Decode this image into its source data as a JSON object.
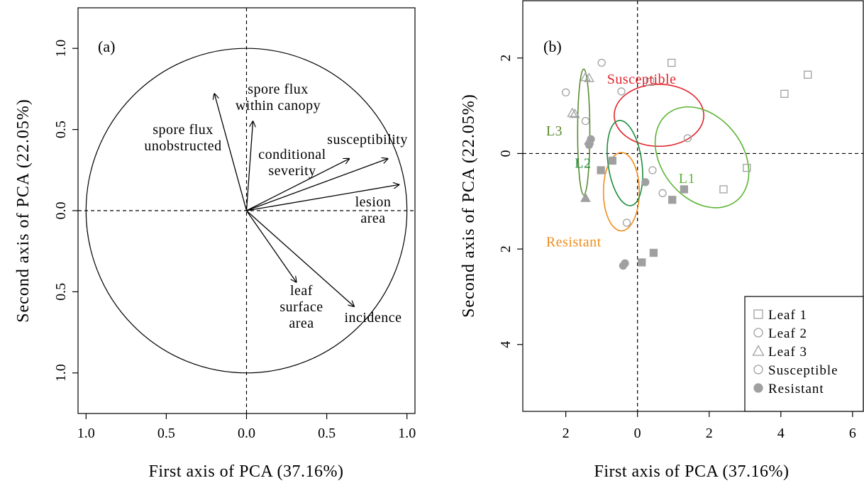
{
  "figure": {
    "xlabel": "First axis of PCA (37.16%)",
    "ylabel": "Second axis of PCA (22.05%)"
  },
  "colors": {
    "black": "#000000",
    "gray": "#a0a0a0",
    "susceptible": "#e0242c",
    "resistant": "#f08c1e",
    "L1": "#5ab432",
    "L2": "#1e8c3c",
    "L3": "#5a8c32"
  },
  "chart_data": [
    {
      "panel_label": "(a)",
      "type": "biplot-arrows",
      "xlabel": "First axis of PCA (37.16%)",
      "ylabel": "Second axis of PCA (22.05%)",
      "xlim": [
        -1.05,
        1.05
      ],
      "ylim": [
        -1.25,
        1.25
      ],
      "x_ticks": [
        -1.0,
        -0.5,
        0.0,
        0.5,
        1.0
      ],
      "x_tick_labels": [
        "1.0",
        "0.5",
        "0.0",
        "0.5",
        "1.0"
      ],
      "y_ticks": [
        -1.0,
        -0.5,
        0.0,
        0.5,
        1.0
      ],
      "y_tick_labels": [
        "1.0",
        "0.5",
        "0.0",
        "0.5",
        "1.0"
      ],
      "unit_circle": true,
      "reference_lines": {
        "x": 0,
        "y": 0,
        "style": "dashed"
      },
      "arrows": [
        {
          "label": "spore flux unobstructed",
          "lines": [
            "spore flux",
            "unobstructed"
          ],
          "x": -0.2,
          "y": 0.72
        },
        {
          "label": "spore flux within canopy",
          "lines": [
            "spore flux",
            "within canopy"
          ],
          "x": 0.04,
          "y": 0.55
        },
        {
          "label": "conditional severity",
          "lines": [
            "conditional",
            "severity"
          ],
          "x": 0.64,
          "y": 0.32
        },
        {
          "label": "susceptibility",
          "lines": [
            "susceptibility"
          ],
          "x": 0.88,
          "y": 0.32
        },
        {
          "label": "lesion area",
          "lines": [
            "lesion",
            "area"
          ],
          "x": 0.95,
          "y": 0.16
        },
        {
          "label": "leaf surface area",
          "lines": [
            "leaf",
            "surface",
            "area"
          ],
          "x": 0.31,
          "y": -0.44
        },
        {
          "label": "incidence",
          "lines": [
            "incidence"
          ],
          "x": 0.67,
          "y": -0.59
        }
      ]
    },
    {
      "panel_label": "(b)",
      "type": "scatter",
      "xlabel": "First axis of PCA (37.16%)",
      "ylabel": "Second axis of PCA (22.05%)",
      "xlim": [
        -3.2,
        6.3
      ],
      "ylim": [
        -5.4,
        3.2
      ],
      "x_ticks": [
        -2,
        0,
        2,
        4,
        6
      ],
      "x_tick_labels": [
        "2",
        "0",
        "2",
        "4",
        "6"
      ],
      "y_ticks": [
        -4,
        -2,
        0,
        2
      ],
      "y_tick_labels": [
        "4",
        "2",
        "0",
        "2"
      ],
      "reference_lines": {
        "x": 0,
        "y": 0,
        "style": "dashed"
      },
      "points": [
        {
          "x": 0.35,
          "y": 1.5,
          "shape": "square",
          "filled": false
        },
        {
          "x": 0.95,
          "y": 1.9,
          "shape": "square",
          "filled": false
        },
        {
          "x": 4.1,
          "y": 1.25,
          "shape": "square",
          "filled": false
        },
        {
          "x": 4.75,
          "y": 1.65,
          "shape": "square",
          "filled": false
        },
        {
          "x": 3.05,
          "y": -0.3,
          "shape": "square",
          "filled": false
        },
        {
          "x": 2.4,
          "y": -0.75,
          "shape": "square",
          "filled": false
        },
        {
          "x": -1.02,
          "y": -0.35,
          "shape": "square",
          "filled": true
        },
        {
          "x": -0.7,
          "y": -0.15,
          "shape": "square",
          "filled": true
        },
        {
          "x": 0.97,
          "y": -0.97,
          "shape": "square",
          "filled": true
        },
        {
          "x": 1.3,
          "y": -0.75,
          "shape": "square",
          "filled": true
        },
        {
          "x": 0.12,
          "y": -2.28,
          "shape": "square",
          "filled": true
        },
        {
          "x": 0.45,
          "y": -2.08,
          "shape": "square",
          "filled": true
        },
        {
          "x": -2.0,
          "y": 1.28,
          "shape": "circle",
          "filled": false
        },
        {
          "x": -1.0,
          "y": 1.9,
          "shape": "circle",
          "filled": false
        },
        {
          "x": -0.45,
          "y": 1.3,
          "shape": "circle",
          "filled": false
        },
        {
          "x": -1.45,
          "y": 0.68,
          "shape": "circle",
          "filled": false
        },
        {
          "x": 1.4,
          "y": 0.32,
          "shape": "circle",
          "filled": false
        },
        {
          "x": 0.42,
          "y": -0.35,
          "shape": "circle",
          "filled": false
        },
        {
          "x": 0.7,
          "y": -0.83,
          "shape": "circle",
          "filled": false
        },
        {
          "x": -0.3,
          "y": -1.45,
          "shape": "circle",
          "filled": false
        },
        {
          "x": -1.3,
          "y": 0.3,
          "shape": "circle",
          "filled": true
        },
        {
          "x": -1.35,
          "y": 0.18,
          "shape": "circle",
          "filled": true
        },
        {
          "x": 0.22,
          "y": -0.6,
          "shape": "circle",
          "filled": true
        },
        {
          "x": -0.35,
          "y": -2.3,
          "shape": "circle",
          "filled": true
        },
        {
          "x": -0.4,
          "y": -2.35,
          "shape": "circle",
          "filled": true
        },
        {
          "x": -1.45,
          "y": 1.6,
          "shape": "triangle",
          "filled": false
        },
        {
          "x": -1.35,
          "y": 1.58,
          "shape": "triangle",
          "filled": false
        },
        {
          "x": -1.82,
          "y": 0.85,
          "shape": "triangle",
          "filled": false
        },
        {
          "x": -1.75,
          "y": 0.83,
          "shape": "triangle",
          "filled": false
        },
        {
          "x": -1.35,
          "y": 0.27,
          "shape": "triangle",
          "filled": false
        },
        {
          "x": -1.45,
          "y": -0.93,
          "shape": "triangle",
          "filled": true
        }
      ],
      "ellipses": [
        {
          "label": "Susceptible",
          "color_key": "susceptible",
          "cx": 0.6,
          "cy": 0.8,
          "rx": 1.25,
          "ry": 0.65,
          "angle": 0,
          "label_x": -0.85,
          "label_y": 1.46
        },
        {
          "label": "Resistant",
          "color_key": "resistant",
          "cx": -0.45,
          "cy": -0.8,
          "rx": 0.5,
          "ry": 0.82,
          "angle": 0,
          "label_x": -2.55,
          "label_y": -1.95
        },
        {
          "label": "L1",
          "color_key": "L1",
          "cx": 1.8,
          "cy": -0.08,
          "rx": 1.55,
          "ry": 0.85,
          "angle": 52,
          "label_x": 1.15,
          "label_y": -0.62
        },
        {
          "label": "L2",
          "color_key": "L2",
          "cx": -0.35,
          "cy": -0.2,
          "rx": 0.47,
          "ry": 0.9,
          "angle": -8,
          "label_x": -1.75,
          "label_y": -0.3
        },
        {
          "label": "L3",
          "color_key": "L3",
          "cx": -1.5,
          "cy": 0.45,
          "rx": 0.17,
          "ry": 1.32,
          "angle": 0,
          "label_x": -2.55,
          "label_y": 0.38
        }
      ],
      "legend": {
        "placement": "bottom-right",
        "entries": [
          {
            "label": "Leaf 1",
            "shape": "square",
            "filled": false
          },
          {
            "label": "Leaf 2",
            "shape": "circle",
            "filled": false
          },
          {
            "label": "Leaf 3",
            "shape": "triangle",
            "filled": false
          },
          {
            "label": "Susceptible",
            "shape": "circle",
            "filled": false
          },
          {
            "label": "Resistant",
            "shape": "circle",
            "filled": true
          }
        ]
      }
    }
  ]
}
